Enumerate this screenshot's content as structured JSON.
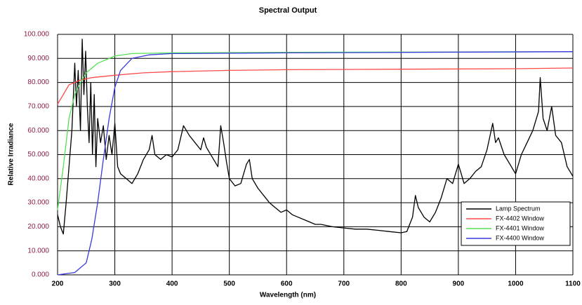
{
  "chart_data": {
    "type": "line",
    "title": "Spectral Output",
    "x_label": "Wavelength (nm)",
    "y_label": "Relative Irradiance",
    "xlim": [
      200,
      1100
    ],
    "ylim": [
      0,
      100
    ],
    "xticks": [
      200,
      300,
      400,
      500,
      600,
      700,
      800,
      900,
      1000,
      1100
    ],
    "yticks": [
      {
        "value": 0,
        "label": "0.000"
      },
      {
        "value": 10,
        "label": "10.000"
      },
      {
        "value": 20,
        "label": "20.000"
      },
      {
        "value": 30,
        "label": "30.000"
      },
      {
        "value": 40,
        "label": "40.000"
      },
      {
        "value": 50,
        "label": "50.000"
      },
      {
        "value": 60,
        "label": "60.000"
      },
      {
        "value": 70,
        "label": "70.000"
      },
      {
        "value": 80,
        "label": "80.000"
      },
      {
        "value": 90,
        "label": "90.000"
      },
      {
        "value": 100,
        "label": "100.000"
      }
    ],
    "grid": true,
    "legend": "lower right",
    "series": [
      {
        "name": "Lamp Spectrum",
        "color": "#000000",
        "x": [
          200,
          205,
          210,
          215,
          220,
          225,
          230,
          233,
          236,
          240,
          243,
          246,
          249,
          252,
          255,
          258,
          261,
          264,
          267,
          270,
          275,
          280,
          285,
          290,
          295,
          300,
          305,
          310,
          320,
          330,
          340,
          350,
          360,
          365,
          370,
          380,
          390,
          400,
          410,
          420,
          425,
          430,
          440,
          450,
          455,
          460,
          470,
          480,
          485,
          490,
          495,
          500,
          510,
          520,
          530,
          535,
          540,
          550,
          560,
          570,
          580,
          590,
          600,
          610,
          620,
          630,
          640,
          650,
          660,
          680,
          700,
          720,
          740,
          760,
          780,
          800,
          810,
          820,
          825,
          830,
          840,
          850,
          860,
          870,
          880,
          890,
          900,
          905,
          910,
          920,
          930,
          940,
          950,
          960,
          965,
          970,
          980,
          990,
          1000,
          1010,
          1020,
          1030,
          1040,
          1043,
          1048,
          1055,
          1063,
          1070,
          1080,
          1090,
          1100
        ],
        "values": [
          25,
          20,
          17,
          30,
          45,
          60,
          88,
          70,
          85,
          60,
          98,
          75,
          93,
          70,
          55,
          80,
          50,
          75,
          45,
          65,
          55,
          62,
          48,
          58,
          50,
          63,
          45,
          42,
          40,
          38,
          42,
          48,
          52,
          58,
          50,
          48,
          50,
          49,
          52,
          62,
          60,
          58,
          55,
          52,
          57,
          53,
          49,
          45,
          62,
          55,
          47,
          40,
          37,
          38,
          46,
          48,
          40,
          36,
          33,
          30,
          28,
          26,
          27,
          25,
          24,
          23,
          22,
          21,
          21,
          20,
          19.5,
          19,
          19,
          18.5,
          18,
          17.5,
          18,
          24,
          33,
          28,
          24,
          22,
          26,
          32,
          40,
          38,
          46,
          42,
          38,
          40,
          43,
          45,
          52,
          63,
          55,
          57,
          50,
          46,
          42,
          50,
          55,
          60,
          68,
          82,
          65,
          60,
          70,
          58,
          55,
          45,
          41
        ]
      },
      {
        "name": "FX-4402 Window",
        "color": "#ff4a4a",
        "x": [
          200,
          210,
          220,
          240,
          260,
          300,
          350,
          400,
          500,
          600,
          800,
          1000,
          1100
        ],
        "values": [
          71,
          75,
          79,
          81,
          82,
          83,
          84,
          84.5,
          85,
          85.3,
          85.5,
          85.7,
          86
        ]
      },
      {
        "name": "FX-4401 Window",
        "color": "#55e055",
        "x": [
          200,
          210,
          220,
          230,
          240,
          250,
          270,
          300,
          330,
          400,
          600,
          1100
        ],
        "values": [
          27,
          45,
          65,
          75,
          80,
          84,
          88,
          91,
          92,
          92.3,
          92.5,
          92.8
        ]
      },
      {
        "name": "FX-4400 Window",
        "color": "#3a3adf",
        "x": [
          200,
          230,
          250,
          260,
          270,
          280,
          290,
          300,
          310,
          330,
          360,
          400,
          600,
          1100
        ],
        "values": [
          0,
          1,
          5,
          15,
          30,
          48,
          65,
          78,
          85,
          90,
          91.5,
          92,
          92.3,
          92.8
        ]
      }
    ]
  }
}
